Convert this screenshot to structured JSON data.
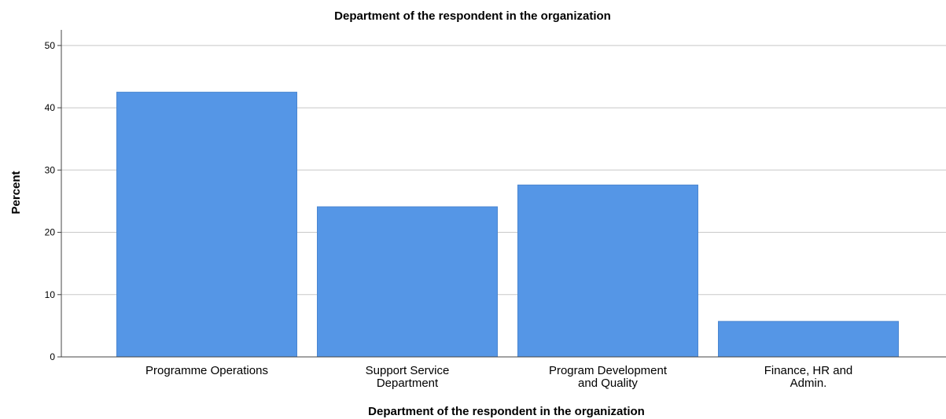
{
  "chart_data": {
    "type": "bar",
    "title": "Department of the respondent in the organization",
    "xlabel": "Department of the respondent in the organization",
    "ylabel": "Percent",
    "categories": [
      [
        "Programme Operations"
      ],
      [
        "Support Service",
        "Department"
      ],
      [
        "Program Development",
        "and Quality"
      ],
      [
        "Finance, HR and",
        "Admin."
      ]
    ],
    "values": [
      42.5,
      24.1,
      27.6,
      5.7
    ],
    "ylim": [
      0,
      52
    ],
    "yticks": [
      0,
      10,
      20,
      30,
      40,
      50
    ],
    "grid": true,
    "colors": {
      "bar": "#5596e6",
      "bar_stroke": "#4a86d0"
    }
  }
}
